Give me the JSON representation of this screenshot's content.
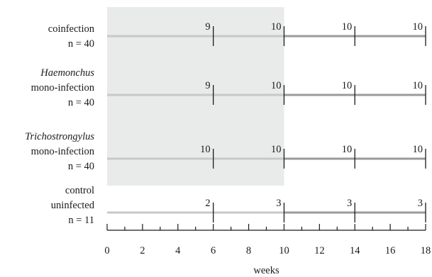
{
  "diagram": {
    "axis": {
      "min": 0,
      "max": 18,
      "major_step": 2,
      "minor_step": 1,
      "tick_labels": [
        "0",
        "2",
        "4",
        "6",
        "8",
        "10",
        "12",
        "14",
        "16",
        "18"
      ],
      "title": "weeks"
    },
    "shaded_period": {
      "from_week": 0,
      "to_week": 10,
      "color": "#e8ebea"
    },
    "line_colors": {
      "light": "#c8c8c8",
      "dark": "#9a9a9a"
    },
    "groups": [
      {
        "label_lines": [
          {
            "text": "coinfection",
            "italic": false
          },
          {
            "text": "n = 40",
            "italic": false
          }
        ],
        "markers": [
          {
            "week": 6,
            "count": "9"
          },
          {
            "week": 10,
            "count": "10"
          },
          {
            "week": 14,
            "count": "10"
          },
          {
            "week": 18,
            "count": "10"
          }
        ]
      },
      {
        "label_lines": [
          {
            "text": "Haemonchus",
            "italic": true
          },
          {
            "text": "mono-infection",
            "italic": false
          },
          {
            "text": "n = 40",
            "italic": false
          }
        ],
        "markers": [
          {
            "week": 6,
            "count": "9"
          },
          {
            "week": 10,
            "count": "10"
          },
          {
            "week": 14,
            "count": "10"
          },
          {
            "week": 18,
            "count": "10"
          }
        ]
      },
      {
        "label_lines": [
          {
            "text": "Trichostrongylus",
            "italic": true
          },
          {
            "text": "mono-infection",
            "italic": false
          },
          {
            "text": "n = 40",
            "italic": false
          }
        ],
        "markers": [
          {
            "week": 6,
            "count": "10"
          },
          {
            "week": 10,
            "count": "10"
          },
          {
            "week": 14,
            "count": "10"
          },
          {
            "week": 18,
            "count": "10"
          }
        ]
      },
      {
        "label_lines": [
          {
            "text": "control",
            "italic": false
          },
          {
            "text": "uninfected",
            "italic": false
          },
          {
            "text": "n = 11",
            "italic": false
          }
        ],
        "markers": [
          {
            "week": 6,
            "count": "2"
          },
          {
            "week": 10,
            "count": "3"
          },
          {
            "week": 14,
            "count": "3"
          },
          {
            "week": 18,
            "count": "3"
          }
        ]
      }
    ]
  }
}
